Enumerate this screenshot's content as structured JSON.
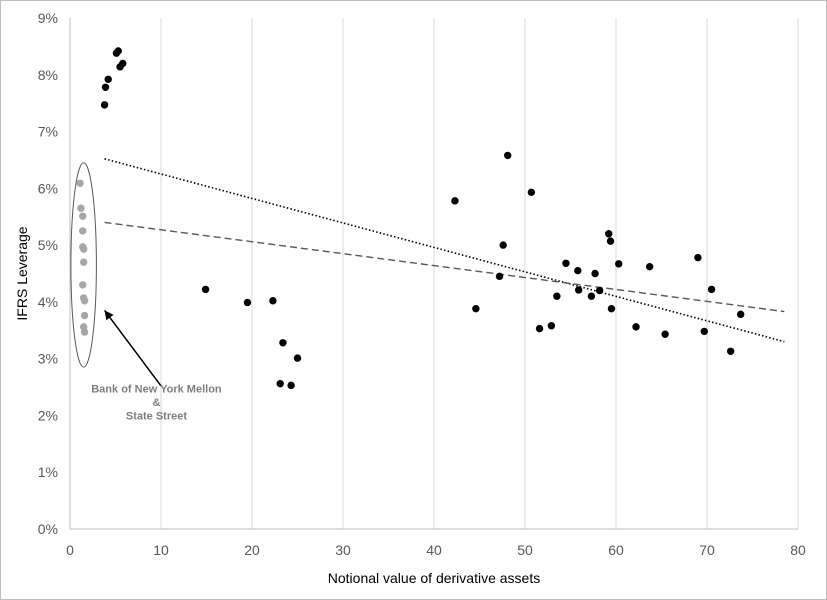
{
  "chart_data": {
    "type": "scatter",
    "xlabel": "Notional value of derivative assets",
    "ylabel": "IFRS Leverage",
    "xlim": [
      0,
      80
    ],
    "ylim": [
      0,
      9
    ],
    "x_ticks": [
      "0",
      "10",
      "20",
      "30",
      "40",
      "50",
      "60",
      "70",
      "80"
    ],
    "y_ticks": [
      "0%",
      "1%",
      "2%",
      "3%",
      "4%",
      "5%",
      "6%",
      "7%",
      "8%",
      "9%"
    ],
    "grid": "vertical",
    "series": [
      {
        "color": "#000000",
        "points": [
          [
            3.8,
            7.47
          ],
          [
            3.9,
            7.78
          ],
          [
            4.2,
            7.92
          ],
          [
            5.1,
            8.38
          ],
          [
            5.3,
            8.42
          ],
          [
            5.5,
            8.14
          ],
          [
            5.8,
            8.2
          ],
          [
            14.9,
            4.22
          ],
          [
            19.5,
            3.99
          ],
          [
            22.3,
            4.02
          ],
          [
            23.1,
            2.56
          ],
          [
            23.4,
            3.28
          ],
          [
            24.3,
            2.53
          ],
          [
            25.0,
            3.01
          ],
          [
            42.3,
            5.78
          ],
          [
            44.6,
            3.88
          ],
          [
            47.2,
            4.45
          ],
          [
            47.6,
            5.0
          ],
          [
            48.1,
            6.58
          ],
          [
            50.7,
            5.93
          ],
          [
            51.6,
            3.53
          ],
          [
            52.9,
            3.58
          ],
          [
            53.5,
            4.1
          ],
          [
            54.5,
            4.68
          ],
          [
            55.8,
            4.55
          ],
          [
            55.9,
            4.21
          ],
          [
            57.3,
            4.1
          ],
          [
            57.7,
            4.5
          ],
          [
            58.2,
            4.2
          ],
          [
            59.2,
            5.2
          ],
          [
            59.4,
            5.07
          ],
          [
            59.5,
            3.88
          ],
          [
            60.3,
            4.67
          ],
          [
            62.2,
            3.56
          ],
          [
            63.7,
            4.62
          ],
          [
            65.4,
            3.43
          ],
          [
            69.0,
            4.78
          ],
          [
            69.7,
            3.48
          ],
          [
            70.5,
            4.22
          ],
          [
            72.6,
            3.13
          ],
          [
            73.7,
            3.78
          ]
        ]
      },
      {
        "color": "#a6a6a6",
        "points": [
          [
            1.1,
            6.09
          ],
          [
            1.2,
            5.65
          ],
          [
            1.4,
            5.51
          ],
          [
            1.4,
            5.25
          ],
          [
            1.4,
            4.97
          ],
          [
            1.5,
            4.93
          ],
          [
            1.5,
            4.7
          ],
          [
            1.4,
            4.3
          ],
          [
            1.5,
            4.07
          ],
          [
            1.6,
            4.02
          ],
          [
            1.6,
            3.76
          ],
          [
            1.5,
            3.56
          ],
          [
            1.6,
            3.47
          ]
        ]
      }
    ],
    "trendlines": [
      {
        "style": "dotted",
        "color": "#000000",
        "from": [
          3.8,
          6.52
        ],
        "to": [
          78.5,
          3.3
        ]
      },
      {
        "style": "dashed",
        "color": "#595959",
        "from": [
          3.8,
          5.4
        ],
        "to": [
          78.5,
          3.83
        ]
      }
    ],
    "annotations": {
      "label_lines": [
        "Bank of New York Mellon",
        "&",
        "State Street"
      ],
      "ellipse": {
        "center": [
          1.5,
          4.65
        ],
        "rx": 1.4,
        "ry": 1.8
      },
      "arrow": {
        "from": [
          10.0,
          2.52
        ],
        "to": [
          3.8,
          3.85
        ]
      }
    }
  }
}
